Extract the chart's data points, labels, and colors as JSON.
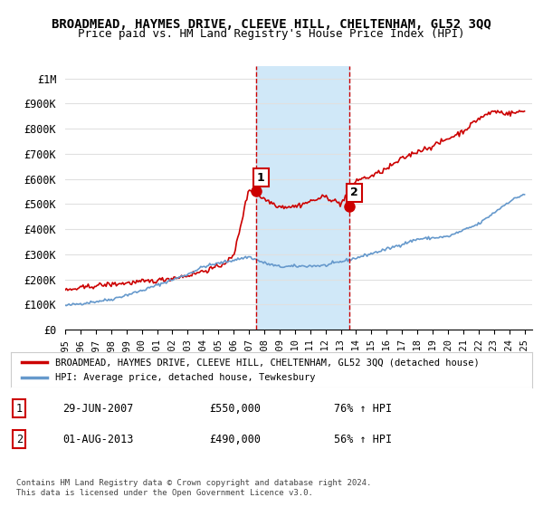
{
  "title": "BROADMEAD, HAYMES DRIVE, CLEEVE HILL, CHELTENHAM, GL52 3QQ",
  "subtitle": "Price paid vs. HM Land Registry's House Price Index (HPI)",
  "title_fontsize": 10,
  "subtitle_fontsize": 9,
  "background_color": "#ffffff",
  "plot_bg_color": "#ffffff",
  "grid_color": "#e0e0e0",
  "ylim": [
    0,
    1050000
  ],
  "xlim_start": 1995.0,
  "xlim_end": 2025.5,
  "ylabel_ticks": [
    0,
    100000,
    200000,
    300000,
    400000,
    500000,
    600000,
    700000,
    800000,
    900000,
    1000000
  ],
  "ylabel_labels": [
    "£0",
    "£100K",
    "£200K",
    "£300K",
    "£400K",
    "£500K",
    "£600K",
    "£700K",
    "£800K",
    "£900K",
    "£1M"
  ],
  "xtick_years": [
    1995,
    1996,
    1997,
    1998,
    1999,
    2000,
    2001,
    2002,
    2003,
    2004,
    2005,
    2006,
    2007,
    2008,
    2009,
    2010,
    2011,
    2012,
    2013,
    2014,
    2015,
    2016,
    2017,
    2018,
    2019,
    2020,
    2021,
    2022,
    2023,
    2024,
    2025
  ],
  "sale1_x": 2007.49,
  "sale1_y": 550000,
  "sale1_label": "1",
  "sale2_x": 2013.58,
  "sale2_y": 490000,
  "sale2_label": "2",
  "vline_color": "#cc0000",
  "vline_style": "--",
  "highlight_color": "#d0e8f8",
  "red_line_color": "#cc0000",
  "blue_line_color": "#6699cc",
  "legend_entry1": "BROADMEAD, HAYMES DRIVE, CLEEVE HILL, CHELTENHAM, GL52 3QQ (detached house)",
  "legend_entry2": "HPI: Average price, detached house, Tewkesbury",
  "annotation1_date": "29-JUN-2007",
  "annotation1_price": "£550,000",
  "annotation1_hpi": "76% ↑ HPI",
  "annotation2_date": "01-AUG-2013",
  "annotation2_price": "£490,000",
  "annotation2_hpi": "56% ↑ HPI",
  "footer": "Contains HM Land Registry data © Crown copyright and database right 2024.\nThis data is licensed under the Open Government Licence v3.0.",
  "sale_marker_color": "#cc0000",
  "sale_marker_size": 8
}
